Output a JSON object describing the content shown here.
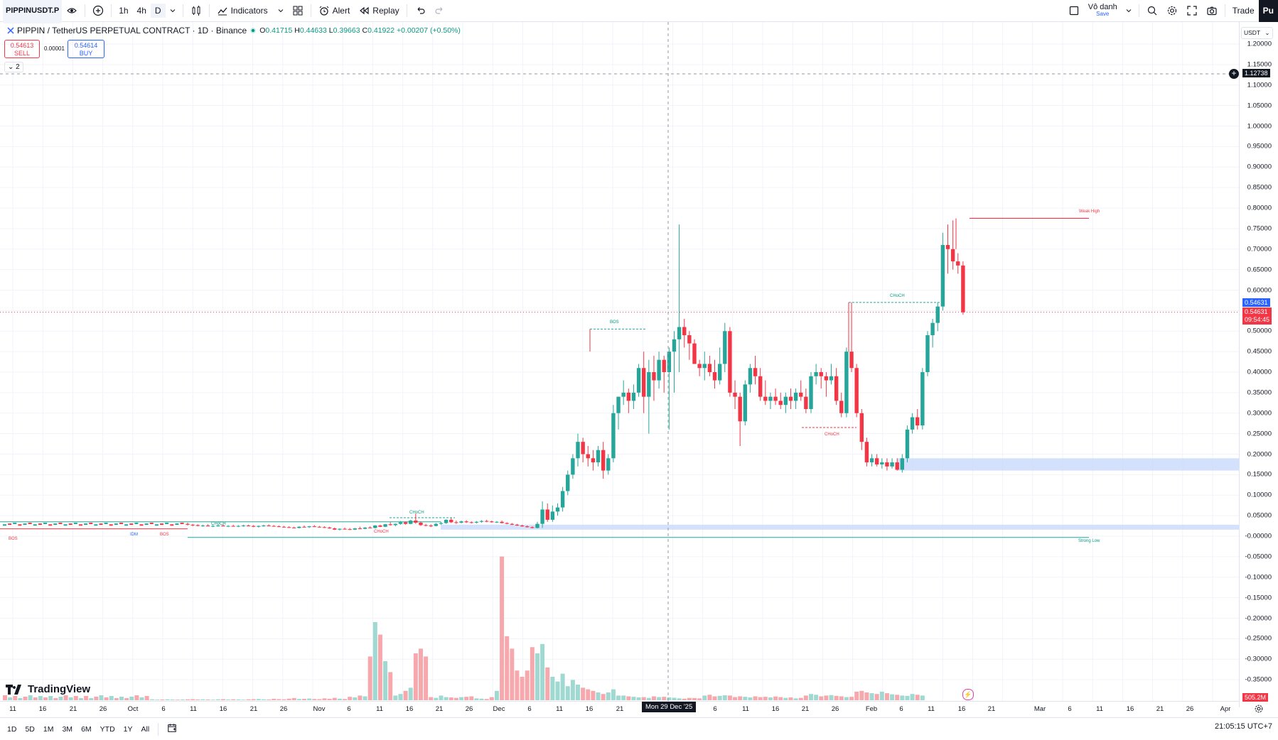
{
  "toolbar": {
    "symbol": "PIPPINUSDT.P",
    "intervals": [
      "1h",
      "4h",
      "D"
    ],
    "indicators_label": "Indicators",
    "alert_label": "Alert",
    "replay_label": "Replay",
    "layout_name": "Vô danh",
    "layout_sub": "Save",
    "trade_label": "Trade",
    "publish_label": "Pu"
  },
  "legend": {
    "title": "PIPPIN / TetherUS PERPETUAL CONTRACT · 1D · Binance",
    "o_key": "O",
    "o_val": "0.41715",
    "h_key": "H",
    "h_val": "0.44633",
    "l_key": "L",
    "l_val": "0.39663",
    "c_key": "C",
    "c_val": "0.41922",
    "change": "+0.00207 (+0.50%)"
  },
  "trade": {
    "sell_price": "0.54613",
    "sell_label": "SELL",
    "spread": "0.00001",
    "buy_price": "0.54614",
    "buy_label": "BUY",
    "collapse": "2"
  },
  "price_axis": {
    "currency": "USDT",
    "ticks": [
      "1.20000",
      "1.15000",
      "1.10000",
      "1.05000",
      "1.00000",
      "0.95000",
      "0.90000",
      "0.85000",
      "0.80000",
      "0.75000",
      "0.70000",
      "0.65000",
      "0.60000",
      "0.55000",
      "0.50000",
      "0.45000",
      "0.40000",
      "0.35000",
      "0.30000",
      "0.25000",
      "0.20000",
      "0.15000",
      "0.10000",
      "0.05000",
      "-0.00000",
      "-0.05000",
      "-0.10000",
      "-0.15000",
      "-0.20000",
      "-0.25000",
      "-0.30000",
      "-0.35000"
    ],
    "crosshair_price": "1.12738",
    "last_price": "0.54631",
    "mark_price": "0.54631",
    "countdown": "09:54:45",
    "volume_value": "505.2M"
  },
  "time_axis": {
    "ticks": [
      "11",
      "16",
      "21",
      "26",
      "Oct",
      "6",
      "11",
      "16",
      "21",
      "26",
      "Nov",
      "6",
      "11",
      "16",
      "21",
      "26",
      "Dec",
      "6",
      "11",
      "16",
      "21",
      "6",
      "11",
      "16",
      "21",
      "26",
      "Feb",
      "6",
      "11",
      "16",
      "21",
      "Mar",
      "6",
      "11",
      "16",
      "21",
      "26",
      "Apr"
    ],
    "crosshair_date": "Mon 29 Dec '25"
  },
  "annotations": {
    "weak_high": "Weak High",
    "strong_low": "Strong Low",
    "bos": "BOS",
    "choch": "CHoCH",
    "idm": "IDM"
  },
  "branding": {
    "logo_text": "TradingView"
  },
  "bottom": {
    "ranges": [
      "1D",
      "5D",
      "1M",
      "3M",
      "6M",
      "YTD",
      "1Y",
      "All"
    ],
    "clock": "21:05:15 UTC+7"
  },
  "colors": {
    "up": "#26a69a",
    "down": "#f23645",
    "vol_up": "#9fd9d1",
    "vol_down": "#f7a8ad",
    "zone": "#c9dafb"
  },
  "chart_data": {
    "type": "candlestick",
    "title": "PIPPIN / TetherUS PERPETUAL CONTRACT · 1D · Binance",
    "ylim": [
      -0.37,
      1.22
    ],
    "candles": [
      [
        0.03,
        0.033,
        0.026,
        0.028
      ],
      [
        0.028,
        0.03,
        0.024,
        0.027
      ],
      [
        0.027,
        0.029,
        0.024,
        0.025
      ],
      [
        0.025,
        0.028,
        0.023,
        0.026
      ],
      [
        0.026,
        0.029,
        0.024,
        0.024
      ],
      [
        0.024,
        0.027,
        0.022,
        0.025
      ],
      [
        0.025,
        0.028,
        0.023,
        0.026
      ],
      [
        0.026,
        0.029,
        0.024,
        0.024
      ],
      [
        0.024,
        0.027,
        0.022,
        0.025
      ],
      [
        0.025,
        0.028,
        0.023,
        0.024
      ],
      [
        0.024,
        0.027,
        0.022,
        0.025
      ],
      [
        0.025,
        0.028,
        0.023,
        0.026
      ],
      [
        0.026,
        0.028,
        0.024,
        0.025
      ],
      [
        0.025,
        0.027,
        0.022,
        0.023
      ],
      [
        0.023,
        0.026,
        0.021,
        0.025
      ],
      [
        0.025,
        0.028,
        0.023,
        0.026
      ],
      [
        0.026,
        0.029,
        0.024,
        0.025
      ],
      [
        0.025,
        0.027,
        0.023,
        0.024
      ],
      [
        0.024,
        0.026,
        0.022,
        0.023
      ],
      [
        0.023,
        0.025,
        0.021,
        0.022
      ],
      [
        0.022,
        0.024,
        0.02,
        0.021
      ],
      [
        0.021,
        0.023,
        0.019,
        0.02
      ],
      [
        0.02,
        0.024,
        0.019,
        0.023
      ],
      [
        0.023,
        0.026,
        0.021,
        0.022
      ],
      [
        0.022,
        0.025,
        0.02,
        0.024
      ],
      [
        0.024,
        0.027,
        0.022,
        0.023
      ],
      [
        0.023,
        0.025,
        0.021,
        0.022
      ],
      [
        0.022,
        0.024,
        0.02,
        0.021
      ],
      [
        0.021,
        0.023,
        0.018,
        0.019
      ],
      [
        0.019,
        0.021,
        0.015,
        0.016
      ],
      [
        0.016,
        0.019,
        0.014,
        0.018
      ],
      [
        0.018,
        0.021,
        0.016,
        0.017
      ],
      [
        0.017,
        0.02,
        0.015,
        0.016
      ],
      [
        0.016,
        0.02,
        0.015,
        0.019
      ],
      [
        0.019,
        0.023,
        0.017,
        0.018
      ],
      [
        0.018,
        0.022,
        0.017,
        0.021
      ],
      [
        0.021,
        0.024,
        0.019,
        0.02
      ],
      [
        0.02,
        0.027,
        0.019,
        0.026
      ],
      [
        0.026,
        0.028,
        0.022,
        0.023
      ],
      [
        0.023,
        0.03,
        0.022,
        0.029
      ],
      [
        0.029,
        0.034,
        0.026,
        0.027
      ],
      [
        0.027,
        0.031,
        0.024,
        0.03
      ],
      [
        0.03,
        0.037,
        0.028,
        0.034
      ],
      [
        0.034,
        0.036,
        0.028,
        0.03
      ],
      [
        0.03,
        0.04,
        0.029,
        0.038
      ],
      [
        0.038,
        0.055,
        0.03,
        0.033
      ],
      [
        0.033,
        0.036,
        0.025,
        0.027
      ],
      [
        0.027,
        0.03,
        0.024,
        0.026
      ],
      [
        0.026,
        0.029,
        0.022,
        0.025
      ],
      [
        0.025,
        0.032,
        0.024,
        0.03
      ],
      [
        0.03,
        0.035,
        0.028,
        0.032
      ],
      [
        0.032,
        0.041,
        0.03,
        0.04
      ],
      [
        0.04,
        0.044,
        0.032,
        0.034
      ],
      [
        0.034,
        0.038,
        0.03,
        0.033
      ],
      [
        0.033,
        0.038,
        0.031,
        0.036
      ],
      [
        0.036,
        0.039,
        0.032,
        0.034
      ],
      [
        0.034,
        0.036,
        0.031,
        0.033
      ],
      [
        0.033,
        0.037,
        0.031,
        0.035
      ],
      [
        0.035,
        0.039,
        0.033,
        0.037
      ],
      [
        0.037,
        0.04,
        0.034,
        0.036
      ],
      [
        0.036,
        0.038,
        0.033,
        0.034
      ],
      [
        0.034,
        0.037,
        0.032,
        0.035
      ],
      [
        0.035,
        0.038,
        0.031,
        0.032
      ],
      [
        0.032,
        0.034,
        0.029,
        0.03
      ],
      [
        0.03,
        0.032,
        0.027,
        0.028
      ],
      [
        0.028,
        0.03,
        0.025,
        0.026
      ],
      [
        0.026,
        0.028,
        0.023,
        0.024
      ],
      [
        0.024,
        0.026,
        0.021,
        0.022
      ],
      [
        0.022,
        0.024,
        0.019,
        0.02
      ],
      [
        0.02,
        0.035,
        0.019,
        0.03
      ],
      [
        0.03,
        0.085,
        0.02,
        0.065
      ],
      [
        0.065,
        0.08,
        0.035,
        0.04
      ],
      [
        0.04,
        0.075,
        0.035,
        0.06
      ],
      [
        0.06,
        0.08,
        0.05,
        0.07
      ],
      [
        0.07,
        0.12,
        0.06,
        0.11
      ],
      [
        0.11,
        0.16,
        0.1,
        0.15
      ],
      [
        0.15,
        0.2,
        0.14,
        0.19
      ],
      [
        0.19,
        0.25,
        0.17,
        0.23
      ],
      [
        0.23,
        0.24,
        0.18,
        0.2
      ],
      [
        0.2,
        0.22,
        0.17,
        0.19
      ],
      [
        0.19,
        0.21,
        0.16,
        0.18
      ],
      [
        0.18,
        0.22,
        0.17,
        0.21
      ],
      [
        0.21,
        0.23,
        0.14,
        0.16
      ],
      [
        0.16,
        0.2,
        0.15,
        0.19
      ],
      [
        0.19,
        0.32,
        0.18,
        0.3
      ],
      [
        0.3,
        0.34,
        0.26,
        0.34
      ],
      [
        0.34,
        0.38,
        0.32,
        0.35
      ],
      [
        0.35,
        0.36,
        0.3,
        0.33
      ],
      [
        0.33,
        0.37,
        0.31,
        0.35
      ],
      [
        0.35,
        0.42,
        0.34,
        0.41
      ],
      [
        0.41,
        0.45,
        0.3,
        0.34
      ],
      [
        0.34,
        0.43,
        0.25,
        0.4
      ],
      [
        0.4,
        0.44,
        0.33,
        0.38
      ],
      [
        0.38,
        0.45,
        0.36,
        0.43
      ],
      [
        0.43,
        0.44,
        0.35,
        0.4
      ],
      [
        0.4,
        0.46,
        0.26,
        0.45
      ],
      [
        0.45,
        0.5,
        0.35,
        0.48
      ],
      [
        0.48,
        0.76,
        0.4,
        0.51
      ],
      [
        0.51,
        0.53,
        0.46,
        0.49
      ],
      [
        0.49,
        0.5,
        0.43,
        0.47
      ],
      [
        0.47,
        0.48,
        0.42,
        0.42
      ],
      [
        0.42,
        0.43,
        0.39,
        0.41
      ],
      [
        0.41,
        0.45,
        0.38,
        0.42
      ],
      [
        0.42,
        0.44,
        0.39,
        0.4
      ],
      [
        0.4,
        0.43,
        0.36,
        0.38
      ],
      [
        0.38,
        0.46,
        0.37,
        0.42
      ],
      [
        0.42,
        0.52,
        0.4,
        0.5
      ],
      [
        0.5,
        0.51,
        0.34,
        0.35
      ],
      [
        0.35,
        0.38,
        0.31,
        0.34
      ],
      [
        0.34,
        0.35,
        0.22,
        0.28
      ],
      [
        0.28,
        0.38,
        0.27,
        0.37
      ],
      [
        0.37,
        0.42,
        0.35,
        0.41
      ],
      [
        0.41,
        0.44,
        0.37,
        0.39
      ],
      [
        0.39,
        0.41,
        0.33,
        0.34
      ],
      [
        0.34,
        0.38,
        0.32,
        0.33
      ],
      [
        0.33,
        0.35,
        0.31,
        0.34
      ],
      [
        0.34,
        0.36,
        0.32,
        0.33
      ],
      [
        0.33,
        0.35,
        0.31,
        0.32
      ],
      [
        0.32,
        0.35,
        0.3,
        0.34
      ],
      [
        0.34,
        0.36,
        0.31,
        0.33
      ],
      [
        0.33,
        0.36,
        0.31,
        0.35
      ],
      [
        0.35,
        0.38,
        0.33,
        0.34
      ],
      [
        0.34,
        0.36,
        0.3,
        0.31
      ],
      [
        0.31,
        0.4,
        0.3,
        0.39
      ],
      [
        0.39,
        0.42,
        0.37,
        0.4
      ],
      [
        0.4,
        0.41,
        0.36,
        0.39
      ],
      [
        0.39,
        0.4,
        0.34,
        0.38
      ],
      [
        0.38,
        0.42,
        0.37,
        0.39
      ],
      [
        0.39,
        0.41,
        0.32,
        0.33
      ],
      [
        0.33,
        0.35,
        0.29,
        0.3
      ],
      [
        0.3,
        0.46,
        0.29,
        0.45
      ],
      [
        0.45,
        0.57,
        0.4,
        0.41
      ],
      [
        0.41,
        0.42,
        0.29,
        0.3
      ],
      [
        0.3,
        0.31,
        0.21,
        0.23
      ],
      [
        0.23,
        0.24,
        0.17,
        0.18
      ],
      [
        0.18,
        0.2,
        0.17,
        0.19
      ],
      [
        0.19,
        0.2,
        0.17,
        0.175
      ],
      [
        0.175,
        0.19,
        0.165,
        0.18
      ],
      [
        0.18,
        0.19,
        0.16,
        0.17
      ],
      [
        0.17,
        0.19,
        0.165,
        0.18
      ],
      [
        0.18,
        0.19,
        0.16,
        0.162
      ],
      [
        0.162,
        0.2,
        0.155,
        0.19
      ],
      [
        0.19,
        0.27,
        0.18,
        0.26
      ],
      [
        0.26,
        0.3,
        0.25,
        0.29
      ],
      [
        0.29,
        0.31,
        0.26,
        0.27
      ],
      [
        0.27,
        0.41,
        0.26,
        0.4
      ],
      [
        0.4,
        0.5,
        0.39,
        0.49
      ],
      [
        0.49,
        0.53,
        0.46,
        0.52
      ],
      [
        0.52,
        0.57,
        0.5,
        0.56
      ],
      [
        0.56,
        0.74,
        0.55,
        0.71
      ],
      [
        0.71,
        0.76,
        0.64,
        0.7
      ],
      [
        0.7,
        0.77,
        0.65,
        0.67
      ],
      [
        0.67,
        0.69,
        0.64,
        0.66
      ],
      [
        0.66,
        0.67,
        0.54,
        0.546
      ]
    ],
    "volumes_millions": [
      5,
      6,
      4,
      5,
      6,
      5,
      4,
      5,
      6,
      7,
      5,
      6,
      5,
      4,
      6,
      7,
      5,
      6,
      5,
      4,
      6,
      7,
      8,
      6,
      5,
      9,
      7,
      6,
      10,
      14,
      8,
      9,
      11,
      8,
      7,
      12,
      9,
      15,
      10,
      8,
      22,
      18,
      30,
      25,
      280,
      500,
      420,
      250,
      180,
      30,
      40,
      60,
      80,
      300,
      330,
      280,
      20,
      15,
      30,
      20,
      18,
      15,
      20,
      22,
      25,
      12,
      10,
      8,
      20,
      60,
      920,
      410,
      330,
      190,
      150,
      190,
      340,
      300,
      360,
      210,
      150,
      120,
      170,
      90,
      130,
      100,
      80,
      70,
      60,
      50,
      40,
      50,
      70,
      30,
      30,
      25,
      22,
      18,
      20,
      15,
      25,
      20,
      22,
      18,
      16,
      12,
      10,
      15,
      14,
      12,
      30,
      35,
      25,
      28,
      32,
      30,
      20,
      25,
      22,
      18,
      25,
      20,
      22,
      18,
      24,
      20,
      15,
      18,
      12,
      15,
      30,
      40,
      35,
      25,
      30,
      33,
      28,
      25,
      20,
      22,
      55,
      60,
      50,
      45,
      40,
      55,
      45,
      38,
      35,
      30,
      28,
      40,
      35,
      30
    ],
    "y_axis_labels": [
      "1.20000",
      "0.00000",
      "-0.35000"
    ]
  }
}
